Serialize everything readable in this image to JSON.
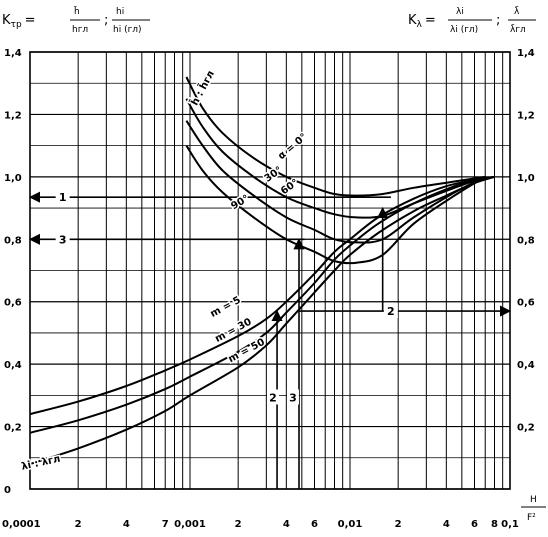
{
  "chart_data": {
    "type": "line",
    "title": "",
    "x_scale": "log",
    "xlim": [
      0.0001,
      0.1
    ],
    "ylim": [
      0,
      1.4
    ],
    "grid": true,
    "left_axis_label": {
      "main": "K",
      "sub": "τр",
      "eq": "=",
      "frac1_num": "h̄",
      "frac1_den": "hгл",
      "sep": ";",
      "frac2_num": "hi",
      "frac2_den": "hi (гл)"
    },
    "right_axis_label": {
      "main": "K",
      "sub": "λ",
      "eq": "=",
      "frac1_num": "λi",
      "frac1_den": "λi (гл)",
      "sep": ";",
      "frac2_num": "λ̄",
      "frac2_den": "λ̄гл"
    },
    "xlabel": {
      "num": "H",
      "den": "F²"
    },
    "y_ticks": [
      {
        "v": 0,
        "label": "0"
      },
      {
        "v": 0.2,
        "label": "0,2"
      },
      {
        "v": 0.4,
        "label": "0,4"
      },
      {
        "v": 0.6,
        "label": "0,6"
      },
      {
        "v": 0.8,
        "label": "0,8"
      },
      {
        "v": 1.0,
        "label": "1,0"
      },
      {
        "v": 1.2,
        "label": "1,2"
      },
      {
        "v": 1.4,
        "label": "1,4"
      }
    ],
    "y_ticks_right": [
      {
        "v": 0.2,
        "label": "0,2"
      },
      {
        "v": 0.4,
        "label": "0,4"
      },
      {
        "v": 0.6,
        "label": "0,6"
      },
      {
        "v": 0.8,
        "label": "0,8"
      },
      {
        "v": 1.0,
        "label": "1,0"
      },
      {
        "v": 1.2,
        "label": "1,2"
      },
      {
        "v": 1.4,
        "label": "1,4"
      }
    ],
    "x_ticks": [
      {
        "v": 0.0001,
        "label": "0,0001"
      },
      {
        "v": 0.0002,
        "label": "2"
      },
      {
        "v": 0.0004,
        "label": "4"
      },
      {
        "v": 0.0007,
        "label": "7"
      },
      {
        "v": 0.001,
        "label": "0,001"
      },
      {
        "v": 0.002,
        "label": "2"
      },
      {
        "v": 0.004,
        "label": "4"
      },
      {
        "v": 0.006,
        "label": "6"
      },
      {
        "v": 0.01,
        "label": "0,01"
      },
      {
        "v": 0.02,
        "label": "2"
      },
      {
        "v": 0.04,
        "label": "4"
      },
      {
        "v": 0.06,
        "label": "6"
      },
      {
        "v": 0.08,
        "label": "8"
      },
      {
        "v": 0.1,
        "label": "0,1"
      }
    ],
    "x_gridlines": [
      0.0001,
      0.0002,
      0.0003,
      0.0004,
      0.0005,
      0.0006,
      0.0007,
      0.0008,
      0.0009,
      0.001,
      0.002,
      0.003,
      0.004,
      0.005,
      0.006,
      0.007,
      0.008,
      0.009,
      0.01,
      0.02,
      0.03,
      0.04,
      0.05,
      0.06,
      0.07,
      0.08,
      0.09,
      0.1
    ],
    "y_gridlines": [
      0,
      0.1,
      0.2,
      0.3,
      0.4,
      0.5,
      0.6,
      0.7,
      0.8,
      0.9,
      1.0,
      1.1,
      1.2,
      1.3,
      1.4
    ],
    "series": [
      {
        "name": "α = 0°",
        "group": "h",
        "points": [
          [
            0.00095,
            1.32
          ],
          [
            0.0012,
            1.22
          ],
          [
            0.0016,
            1.14
          ],
          [
            0.0025,
            1.06
          ],
          [
            0.004,
            1.0
          ],
          [
            0.006,
            0.965
          ],
          [
            0.008,
            0.945
          ],
          [
            0.011,
            0.94
          ],
          [
            0.016,
            0.945
          ],
          [
            0.025,
            0.965
          ],
          [
            0.045,
            0.985
          ],
          [
            0.07,
            1.0
          ]
        ]
      },
      {
        "name": "30°",
        "group": "h",
        "points": [
          [
            0.00095,
            1.25
          ],
          [
            0.0012,
            1.16
          ],
          [
            0.0016,
            1.08
          ],
          [
            0.0025,
            1.0
          ],
          [
            0.004,
            0.935
          ],
          [
            0.006,
            0.9
          ],
          [
            0.008,
            0.88
          ],
          [
            0.011,
            0.87
          ],
          [
            0.016,
            0.875
          ],
          [
            0.025,
            0.915
          ],
          [
            0.045,
            0.965
          ],
          [
            0.07,
            1.0
          ]
        ]
      },
      {
        "name": "60°",
        "group": "h",
        "points": [
          [
            0.00095,
            1.18
          ],
          [
            0.0012,
            1.1
          ],
          [
            0.0016,
            1.02
          ],
          [
            0.0025,
            0.94
          ],
          [
            0.004,
            0.87
          ],
          [
            0.006,
            0.83
          ],
          [
            0.008,
            0.8
          ],
          [
            0.011,
            0.79
          ],
          [
            0.016,
            0.8
          ],
          [
            0.025,
            0.87
          ],
          [
            0.045,
            0.95
          ],
          [
            0.07,
            1.0
          ]
        ]
      },
      {
        "name": "90°",
        "group": "h",
        "points": [
          [
            0.00095,
            1.1
          ],
          [
            0.0012,
            1.02
          ],
          [
            0.0016,
            0.95
          ],
          [
            0.0025,
            0.87
          ],
          [
            0.004,
            0.8
          ],
          [
            0.006,
            0.76
          ],
          [
            0.008,
            0.73
          ],
          [
            0.011,
            0.725
          ],
          [
            0.016,
            0.75
          ],
          [
            0.025,
            0.85
          ],
          [
            0.045,
            0.94
          ],
          [
            0.07,
            1.0
          ]
        ]
      },
      {
        "name": "m = 5",
        "group": "lambda",
        "points": [
          [
            0.0001,
            0.24
          ],
          [
            0.0002,
            0.28
          ],
          [
            0.0004,
            0.33
          ],
          [
            0.0007,
            0.38
          ],
          [
            0.001,
            0.415
          ],
          [
            0.002,
            0.49
          ],
          [
            0.003,
            0.545
          ],
          [
            0.004,
            0.6
          ],
          [
            0.006,
            0.69
          ],
          [
            0.008,
            0.76
          ],
          [
            0.01,
            0.8
          ],
          [
            0.015,
            0.87
          ],
          [
            0.025,
            0.93
          ],
          [
            0.04,
            0.97
          ],
          [
            0.06,
            0.99
          ],
          [
            0.08,
            1.0
          ]
        ]
      },
      {
        "name": "m = 30",
        "group": "lambda",
        "points": [
          [
            0.0001,
            0.18
          ],
          [
            0.0002,
            0.22
          ],
          [
            0.0004,
            0.27
          ],
          [
            0.0007,
            0.32
          ],
          [
            0.001,
            0.36
          ],
          [
            0.002,
            0.44
          ],
          [
            0.003,
            0.5
          ],
          [
            0.004,
            0.565
          ],
          [
            0.006,
            0.66
          ],
          [
            0.008,
            0.735
          ],
          [
            0.01,
            0.78
          ],
          [
            0.015,
            0.85
          ],
          [
            0.025,
            0.915
          ],
          [
            0.04,
            0.96
          ],
          [
            0.06,
            0.99
          ],
          [
            0.08,
            1.0
          ]
        ]
      },
      {
        "name": "m = 50",
        "group": "lambda",
        "points": [
          [
            0.0001,
            0.08
          ],
          [
            0.0002,
            0.13
          ],
          [
            0.0004,
            0.19
          ],
          [
            0.0007,
            0.25
          ],
          [
            0.001,
            0.3
          ],
          [
            0.002,
            0.39
          ],
          [
            0.003,
            0.46
          ],
          [
            0.004,
            0.53
          ],
          [
            0.006,
            0.63
          ],
          [
            0.008,
            0.7
          ],
          [
            0.01,
            0.75
          ],
          [
            0.015,
            0.82
          ],
          [
            0.025,
            0.89
          ],
          [
            0.04,
            0.94
          ],
          [
            0.06,
            0.98
          ],
          [
            0.08,
            1.0
          ]
        ]
      }
    ],
    "curve_labels": [
      {
        "text": "h̄ : h̄гл",
        "x": 0.00125,
        "y": 1.28,
        "angle": -62
      },
      {
        "text": "α = 0°",
        "x": 0.0045,
        "y": 1.09,
        "angle": -40
      },
      {
        "text": "30°",
        "x": 0.0034,
        "y": 1.0,
        "angle": -35
      },
      {
        "text": "60°",
        "x": 0.0043,
        "y": 0.96,
        "angle": -35
      },
      {
        "text": "90°",
        "x": 0.0021,
        "y": 0.91,
        "angle": -30
      },
      {
        "text": "m = 5",
        "x": 0.0017,
        "y": 0.575,
        "angle": -28
      },
      {
        "text": "m = 30",
        "x": 0.0019,
        "y": 0.5,
        "angle": -28
      },
      {
        "text": "m = 50",
        "x": 0.0023,
        "y": 0.435,
        "angle": -28
      },
      {
        "text": "λi : λгл",
        "x": 0.000118,
        "y": 0.075,
        "angle": -12
      }
    ],
    "annotations": [
      {
        "label": "1",
        "kind": "guide",
        "from": [
          0.018,
          0.935
        ],
        "to": [
          0.0001,
          0.935
        ],
        "text_at": [
          0.00016,
          0.935
        ]
      },
      {
        "label": "3",
        "kind": "guide",
        "from": [
          0.0052,
          0.8
        ],
        "to": [
          0.0001,
          0.8
        ],
        "text_at": [
          0.00016,
          0.8
        ]
      },
      {
        "label": "2",
        "kind": "guide",
        "from": [
          0.0048,
          0.57
        ],
        "to": [
          0.1,
          0.57
        ],
        "text_at": [
          0.018,
          0.57
        ]
      },
      {
        "label": "",
        "kind": "riser",
        "from": [
          0.0035,
          0.0
        ],
        "to": [
          0.0035,
          0.57
        ]
      },
      {
        "label": "",
        "kind": "riser",
        "from": [
          0.0048,
          0.0
        ],
        "to": [
          0.0048,
          0.8
        ]
      },
      {
        "label": "",
        "kind": "riser",
        "from": [
          0.016,
          0.57
        ],
        "to": [
          0.016,
          0.9
        ]
      },
      {
        "label": "2",
        "kind": "marker",
        "x": 0.0033,
        "y": 0.29
      },
      {
        "label": "3",
        "kind": "marker",
        "x": 0.0044,
        "y": 0.29
      }
    ]
  }
}
